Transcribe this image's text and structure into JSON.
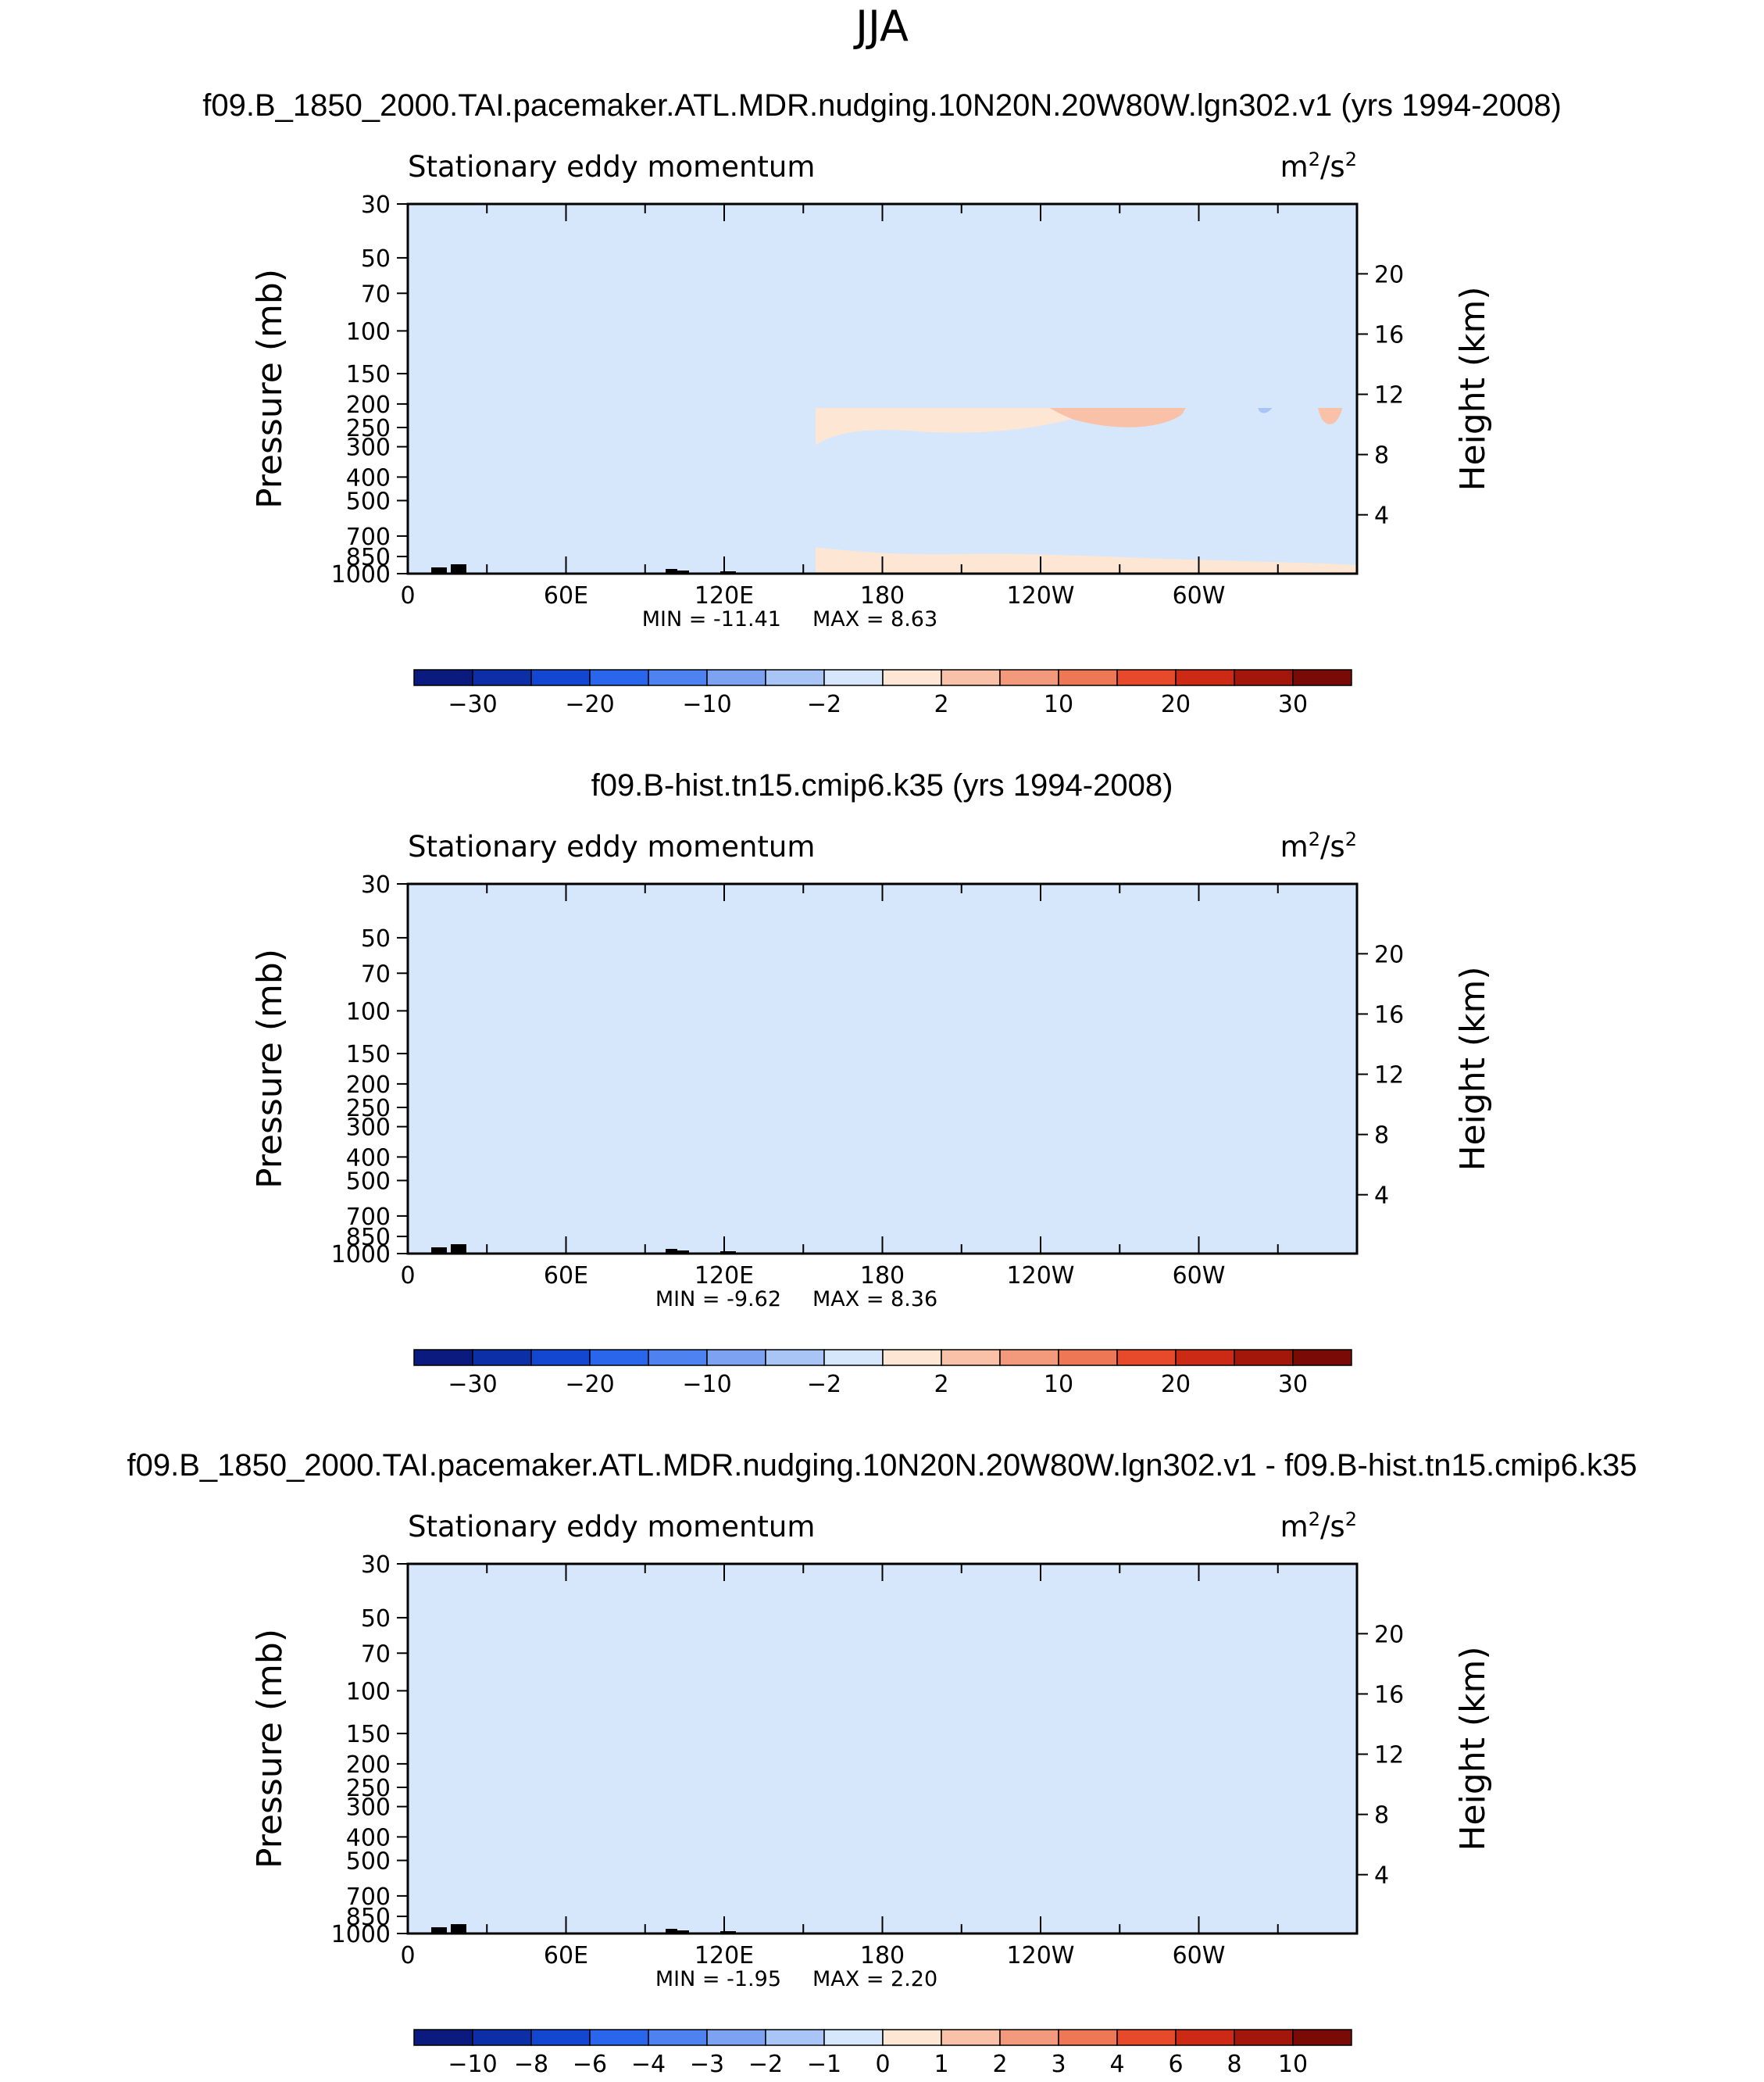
{
  "figure_title": "JJA",
  "colors": {
    "light_blue": "#d6e7fb",
    "light_orange": "#fde7d4",
    "mid_blue": "#a9c5f5",
    "mid_orange": "#f8c1a8",
    "strong_orange": "#f39a7d",
    "deep_orange": "#ee7755",
    "topography": "#000000"
  },
  "chart_data": [
    {
      "type": "heatmap",
      "title": "f09.B_1850_2000.TAI.pacemaker.ATL.MDR.nudging.10N20N.20W80W.lgn302.v1 (yrs 1994-2008)",
      "left_label": "Stationary eddy momentum",
      "units": {
        "base": "m",
        "exp1": "2",
        "sep": "/s",
        "exp2": "2"
      },
      "xlabel": "",
      "ylabel": "Pressure (mb)",
      "ylabel_right": "Height (km)",
      "x_ticks": [
        "0",
        "60E",
        "120E",
        "180",
        "120W",
        "60W"
      ],
      "y_ticks": [
        "30",
        "50",
        "70",
        "100",
        "150",
        "200",
        "250",
        "300",
        "400",
        "500",
        "700",
        "850",
        "1000"
      ],
      "y_right_ticks": [
        "20",
        "16",
        "12",
        "8",
        "4"
      ],
      "xlim": [
        0,
        360
      ],
      "ylim": [
        1000,
        30
      ],
      "min_text": "MIN = -11.41",
      "max_text": "MAX = 8.63",
      "min": -11.41,
      "max": 8.63,
      "colorbar": {
        "colors": [
          "#0a1a7e",
          "#0c2fa8",
          "#1347d2",
          "#2a66ec",
          "#4d82f0",
          "#7da2f2",
          "#a9c5f5",
          "#d6e7fb",
          "#fde7d4",
          "#f8c1a8",
          "#f39a7d",
          "#ee7755",
          "#e64a2a",
          "#cc2a14",
          "#a3160a",
          "#7a0a05"
        ],
        "labels": [
          "−30",
          "−20",
          "−10",
          "−2",
          "2",
          "10",
          "20",
          "30"
        ],
        "label_positions": [
          1,
          3,
          5,
          7,
          9,
          11,
          13,
          15
        ]
      }
    },
    {
      "type": "heatmap",
      "title": "f09.B-hist.tn15.cmip6.k35 (yrs 1994-2008)",
      "left_label": "Stationary eddy momentum",
      "units": {
        "base": "m",
        "exp1": "2",
        "sep": "/s",
        "exp2": "2"
      },
      "xlabel": "",
      "ylabel": "Pressure (mb)",
      "ylabel_right": "Height (km)",
      "x_ticks": [
        "0",
        "60E",
        "120E",
        "180",
        "120W",
        "60W"
      ],
      "y_ticks": [
        "30",
        "50",
        "70",
        "100",
        "150",
        "200",
        "250",
        "300",
        "400",
        "500",
        "700",
        "850",
        "1000"
      ],
      "y_right_ticks": [
        "20",
        "16",
        "12",
        "8",
        "4"
      ],
      "xlim": [
        0,
        360
      ],
      "ylim": [
        1000,
        30
      ],
      "min_text": "MIN = -9.62",
      "max_text": "MAX = 8.36",
      "min": -9.62,
      "max": 8.36,
      "colorbar": {
        "colors": [
          "#0a1a7e",
          "#0c2fa8",
          "#1347d2",
          "#2a66ec",
          "#4d82f0",
          "#7da2f2",
          "#a9c5f5",
          "#d6e7fb",
          "#fde7d4",
          "#f8c1a8",
          "#f39a7d",
          "#ee7755",
          "#e64a2a",
          "#cc2a14",
          "#a3160a",
          "#7a0a05"
        ],
        "labels": [
          "−30",
          "−20",
          "−10",
          "−2",
          "2",
          "10",
          "20",
          "30"
        ],
        "label_positions": [
          1,
          3,
          5,
          7,
          9,
          11,
          13,
          15
        ]
      }
    },
    {
      "type": "heatmap",
      "title": "f09.B_1850_2000.TAI.pacemaker.ATL.MDR.nudging.10N20N.20W80W.lgn302.v1 - f09.B-hist.tn15.cmip6.k35",
      "left_label": "Stationary eddy momentum",
      "units": {
        "base": "m",
        "exp1": "2",
        "sep": "/s",
        "exp2": "2"
      },
      "xlabel": "",
      "ylabel": "Pressure (mb)",
      "ylabel_right": "Height (km)",
      "x_ticks": [
        "0",
        "60E",
        "120E",
        "180",
        "120W",
        "60W"
      ],
      "y_ticks": [
        "30",
        "50",
        "70",
        "100",
        "150",
        "200",
        "250",
        "300",
        "400",
        "500",
        "700",
        "850",
        "1000"
      ],
      "y_right_ticks": [
        "20",
        "16",
        "12",
        "8",
        "4"
      ],
      "xlim": [
        0,
        360
      ],
      "ylim": [
        1000,
        30
      ],
      "min_text": "MIN = -1.95",
      "max_text": "MAX = 2.20",
      "min": -1.95,
      "max": 2.2,
      "colorbar": {
        "colors": [
          "#0a1a7e",
          "#0c2fa8",
          "#1347d2",
          "#2a66ec",
          "#4d82f0",
          "#7da2f2",
          "#a9c5f5",
          "#d6e7fb",
          "#fde7d4",
          "#f8c1a8",
          "#f39a7d",
          "#ee7755",
          "#e64a2a",
          "#cc2a14",
          "#a3160a",
          "#7a0a05"
        ],
        "labels": [
          "−10",
          "−8",
          "−6",
          "−4",
          "−3",
          "−2",
          "−1",
          "0",
          "1",
          "2",
          "3",
          "4",
          "6",
          "8",
          "10"
        ],
        "label_positions": [
          1,
          2,
          3,
          4,
          5,
          6,
          7,
          8,
          9,
          10,
          11,
          12,
          13,
          14,
          15
        ]
      }
    }
  ]
}
